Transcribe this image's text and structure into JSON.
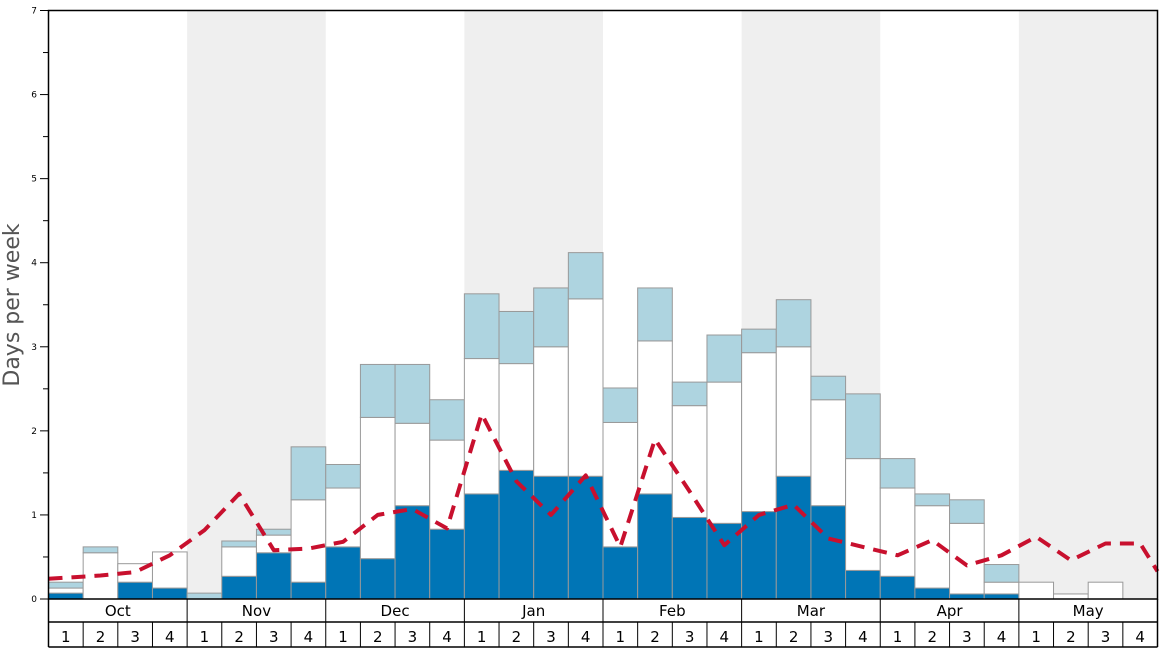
{
  "chart_data": {
    "type": "bar",
    "ylabel": "Days per week",
    "ylim": [
      0,
      7
    ],
    "yticks": [
      0,
      1,
      2,
      3,
      4,
      5,
      6,
      7
    ],
    "months": [
      "Oct",
      "Nov",
      "Dec",
      "Jan",
      "Feb",
      "Mar",
      "Apr",
      "May"
    ],
    "weeks": [
      "1",
      "2",
      "3",
      "4"
    ],
    "series": [
      {
        "values": [
          0.07,
          0.0,
          0.2,
          0.13,
          0.0,
          0.27,
          0.55,
          0.2,
          0.62,
          0.48,
          1.11,
          0.83,
          1.25,
          1.53,
          1.46,
          1.46,
          0.62,
          1.25,
          0.97,
          0.9,
          1.04,
          1.46,
          1.11,
          0.34,
          0.27,
          0.13,
          0.06,
          0.06,
          0.0,
          0.0,
          0.0,
          0.0
        ]
      },
      {
        "values": [
          0.06,
          0.55,
          0.22,
          0.43,
          0.0,
          0.35,
          0.21,
          0.98,
          0.7,
          1.68,
          0.98,
          1.06,
          1.61,
          1.27,
          1.54,
          2.11,
          1.48,
          1.82,
          1.33,
          1.68,
          1.89,
          1.54,
          1.26,
          1.33,
          1.05,
          0.98,
          0.84,
          0.14,
          0.2,
          0.06,
          0.2,
          0.0
        ]
      },
      {
        "values": [
          0.07,
          0.07,
          0.0,
          0.0,
          0.07,
          0.07,
          0.07,
          0.63,
          0.28,
          0.63,
          0.7,
          0.48,
          0.77,
          0.62,
          0.7,
          0.55,
          0.41,
          0.63,
          0.28,
          0.56,
          0.28,
          0.56,
          0.28,
          0.77,
          0.35,
          0.14,
          0.28,
          0.21,
          0.0,
          0.0,
          0.0,
          0.0
        ]
      },
      {
        "values": [
          0.24,
          0.28,
          0.32,
          0.52,
          0.82,
          1.25,
          0.58,
          0.6,
          0.68,
          1.0,
          1.07,
          0.84,
          2.2,
          1.4,
          1.0,
          1.47,
          0.62,
          1.9,
          1.28,
          0.64,
          1.0,
          1.12,
          0.72,
          0.62,
          0.52,
          0.7,
          0.4,
          0.52,
          0.74,
          0.46,
          0.66,
          0.66
        ]
      }
    ],
    "colors": {
      "series_1": "#0075b6",
      "series_2": "#ffffff",
      "series_3": "#aed4e0",
      "line": "#c8102e",
      "band": "#efefef",
      "grid_border": "#999999"
    },
    "line_end_value": 0.33
  }
}
